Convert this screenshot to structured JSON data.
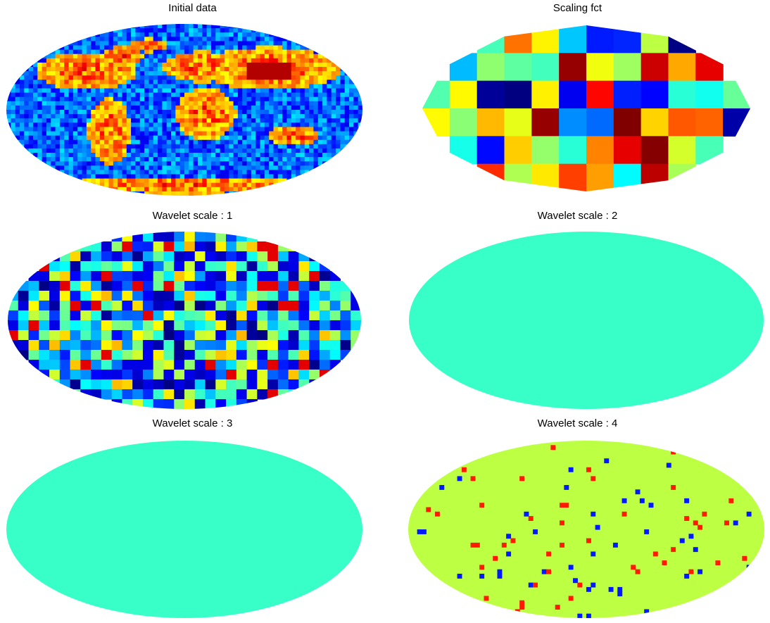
{
  "figure": {
    "panels": [
      {
        "title": "Initial data",
        "kind": "map"
      },
      {
        "title": "Scaling fct",
        "kind": "coarse"
      },
      {
        "title": "Wavelet scale : 1",
        "kind": "tiles"
      },
      {
        "title": "Wavelet scale : 2",
        "kind": "edges"
      },
      {
        "title": "Wavelet scale : 3",
        "kind": "fine"
      },
      {
        "title": "Wavelet scale : 4",
        "kind": "noise"
      }
    ],
    "colormap": "jet",
    "projection": "mollweide"
  }
}
